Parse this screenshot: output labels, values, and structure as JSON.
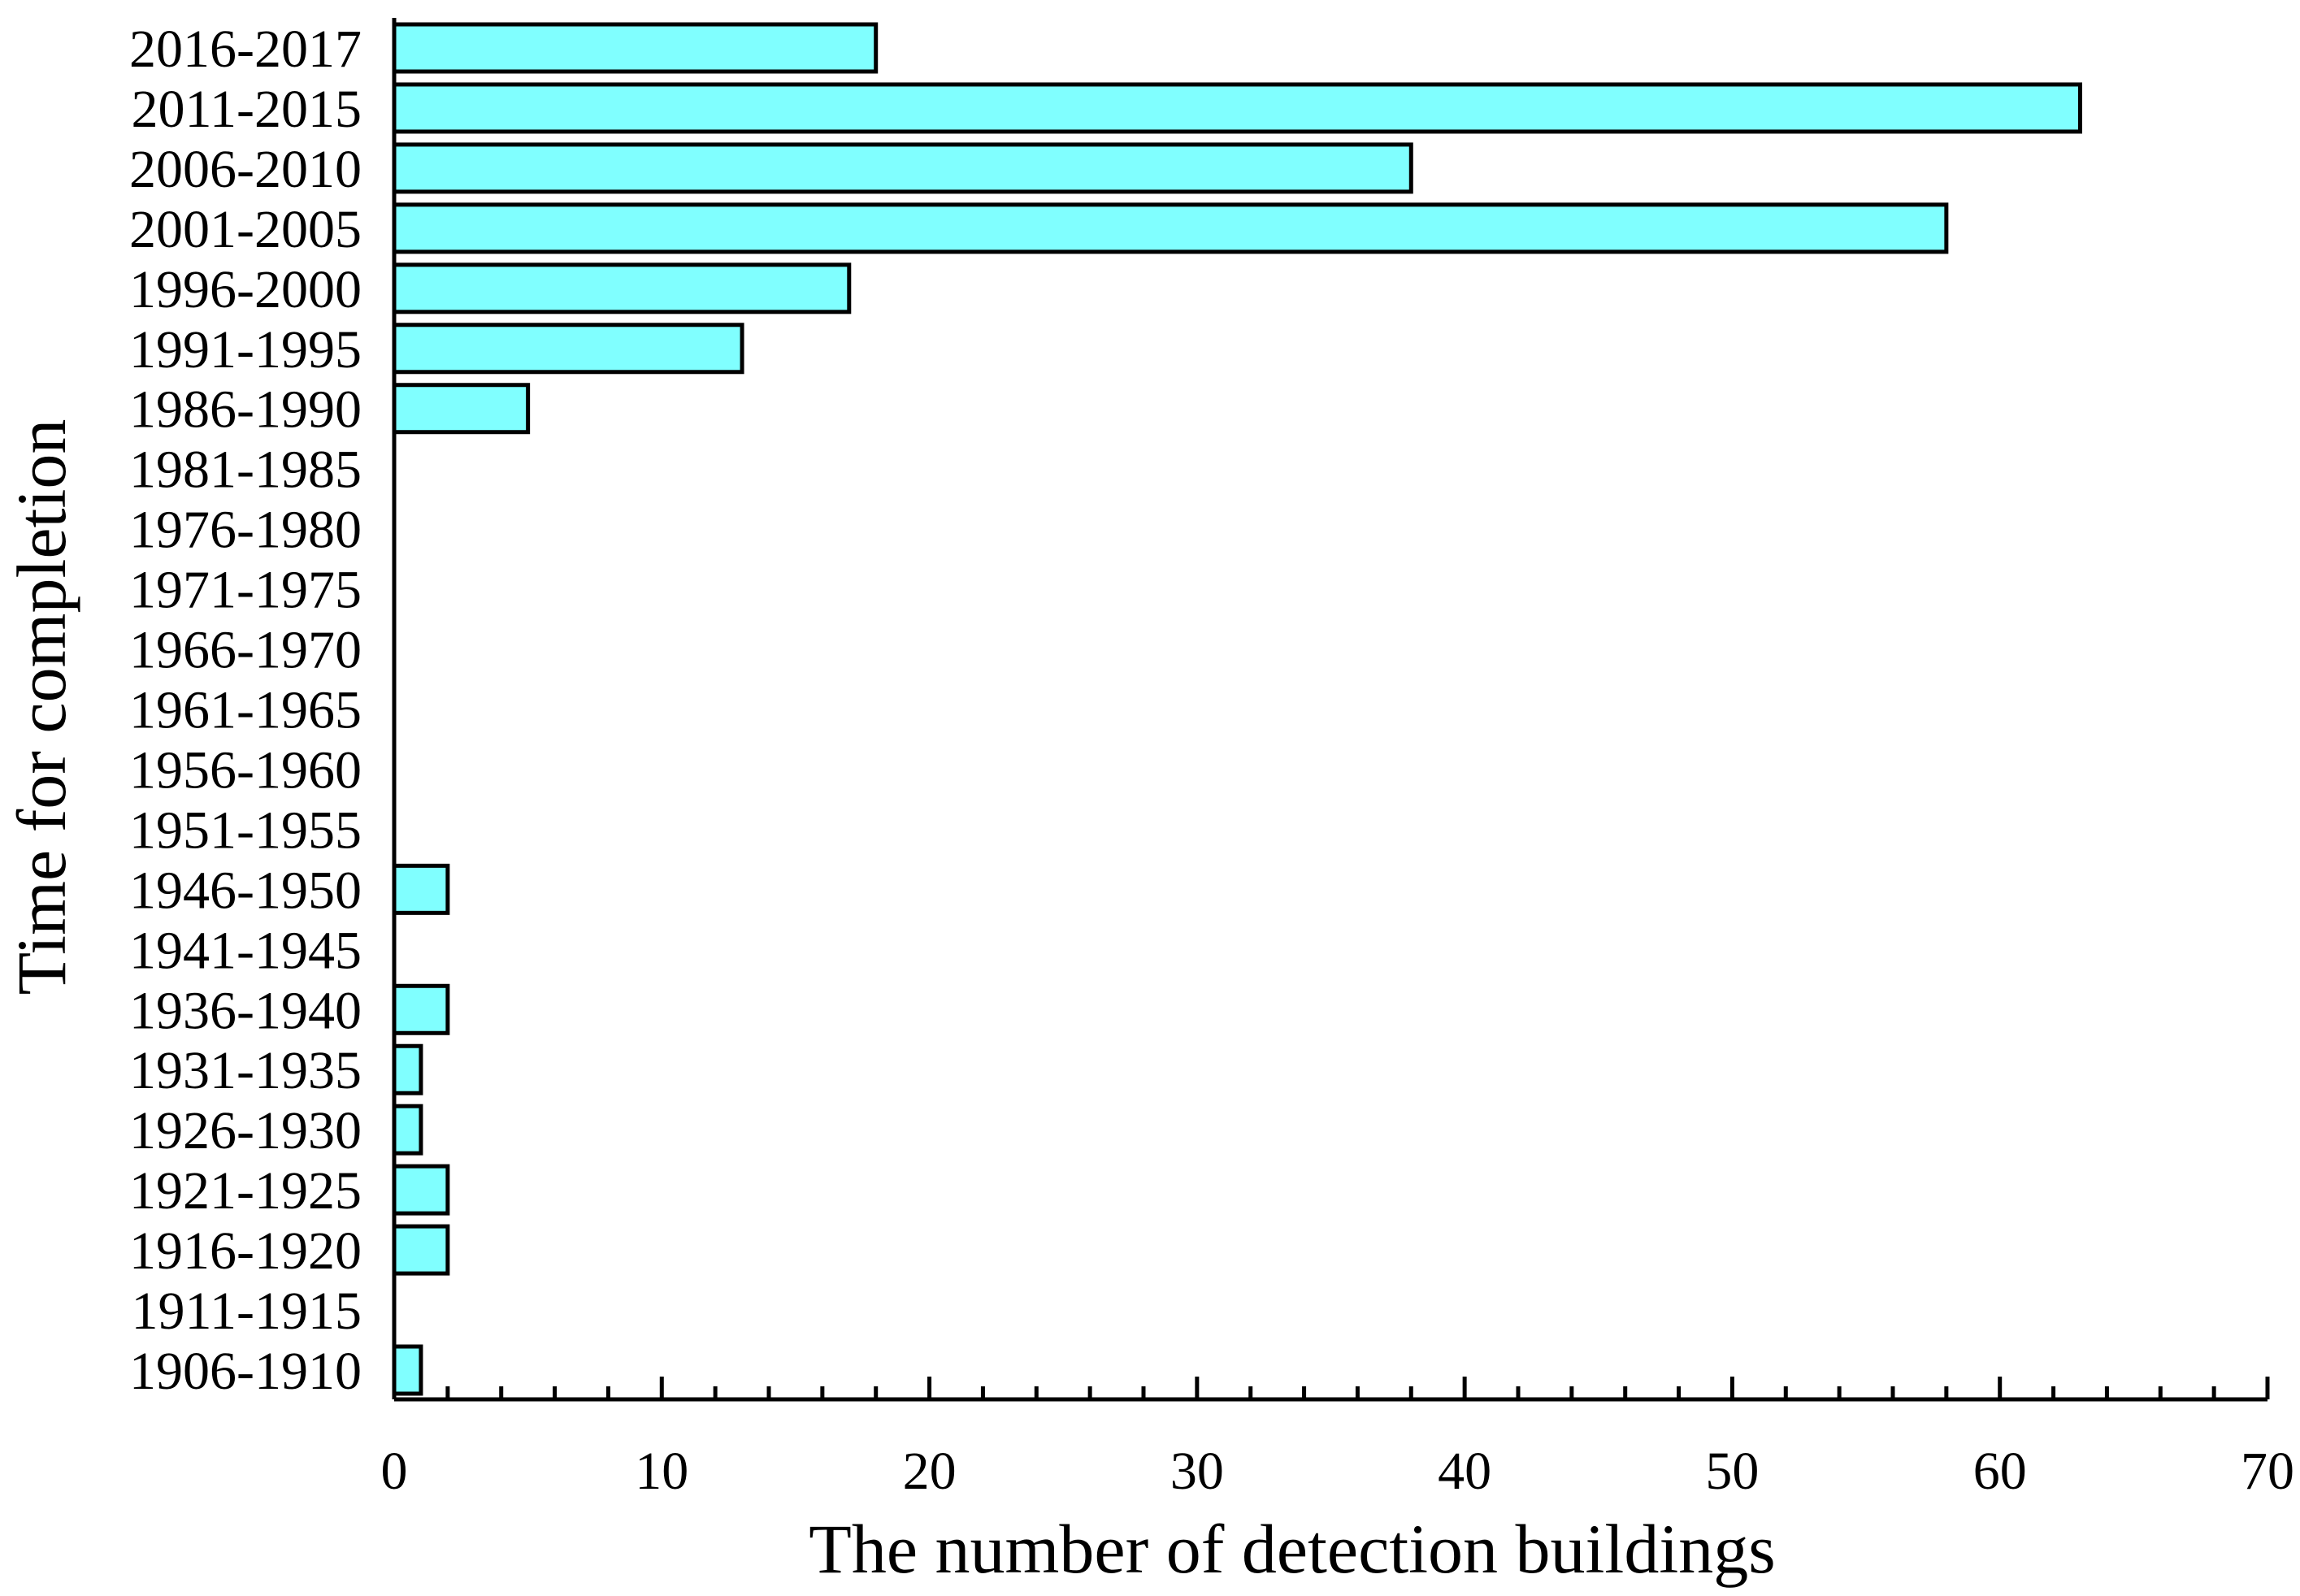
{
  "chart_data": {
    "type": "bar",
    "orientation": "horizontal",
    "title": "",
    "xlabel": "The number of detection buildings",
    "ylabel": "Time for completion",
    "xlim": [
      0,
      70
    ],
    "x_major_ticks": [
      0,
      10,
      20,
      30,
      40,
      50,
      60,
      70
    ],
    "x_minor_step": 2,
    "grid": false,
    "bar_color": "#80FFFF",
    "categories": [
      "1906-1910",
      "1911-1915",
      "1916-1920",
      "1921-1925",
      "1926-1930",
      "1931-1935",
      "1936-1940",
      "1941-1945",
      "1946-1950",
      "1951-1955",
      "1956-1960",
      "1961-1965",
      "1966-1970",
      "1971-1975",
      "1976-1980",
      "1981-1985",
      "1986-1990",
      "1991-1995",
      "1996-2000",
      "2001-2005",
      "2006-2010",
      "2011-2015",
      "2016-2017"
    ],
    "values": [
      1,
      0,
      2,
      2,
      1,
      1,
      2,
      0,
      2,
      0,
      0,
      0,
      0,
      0,
      0,
      0,
      5,
      13,
      17,
      58,
      38,
      63,
      18
    ]
  }
}
